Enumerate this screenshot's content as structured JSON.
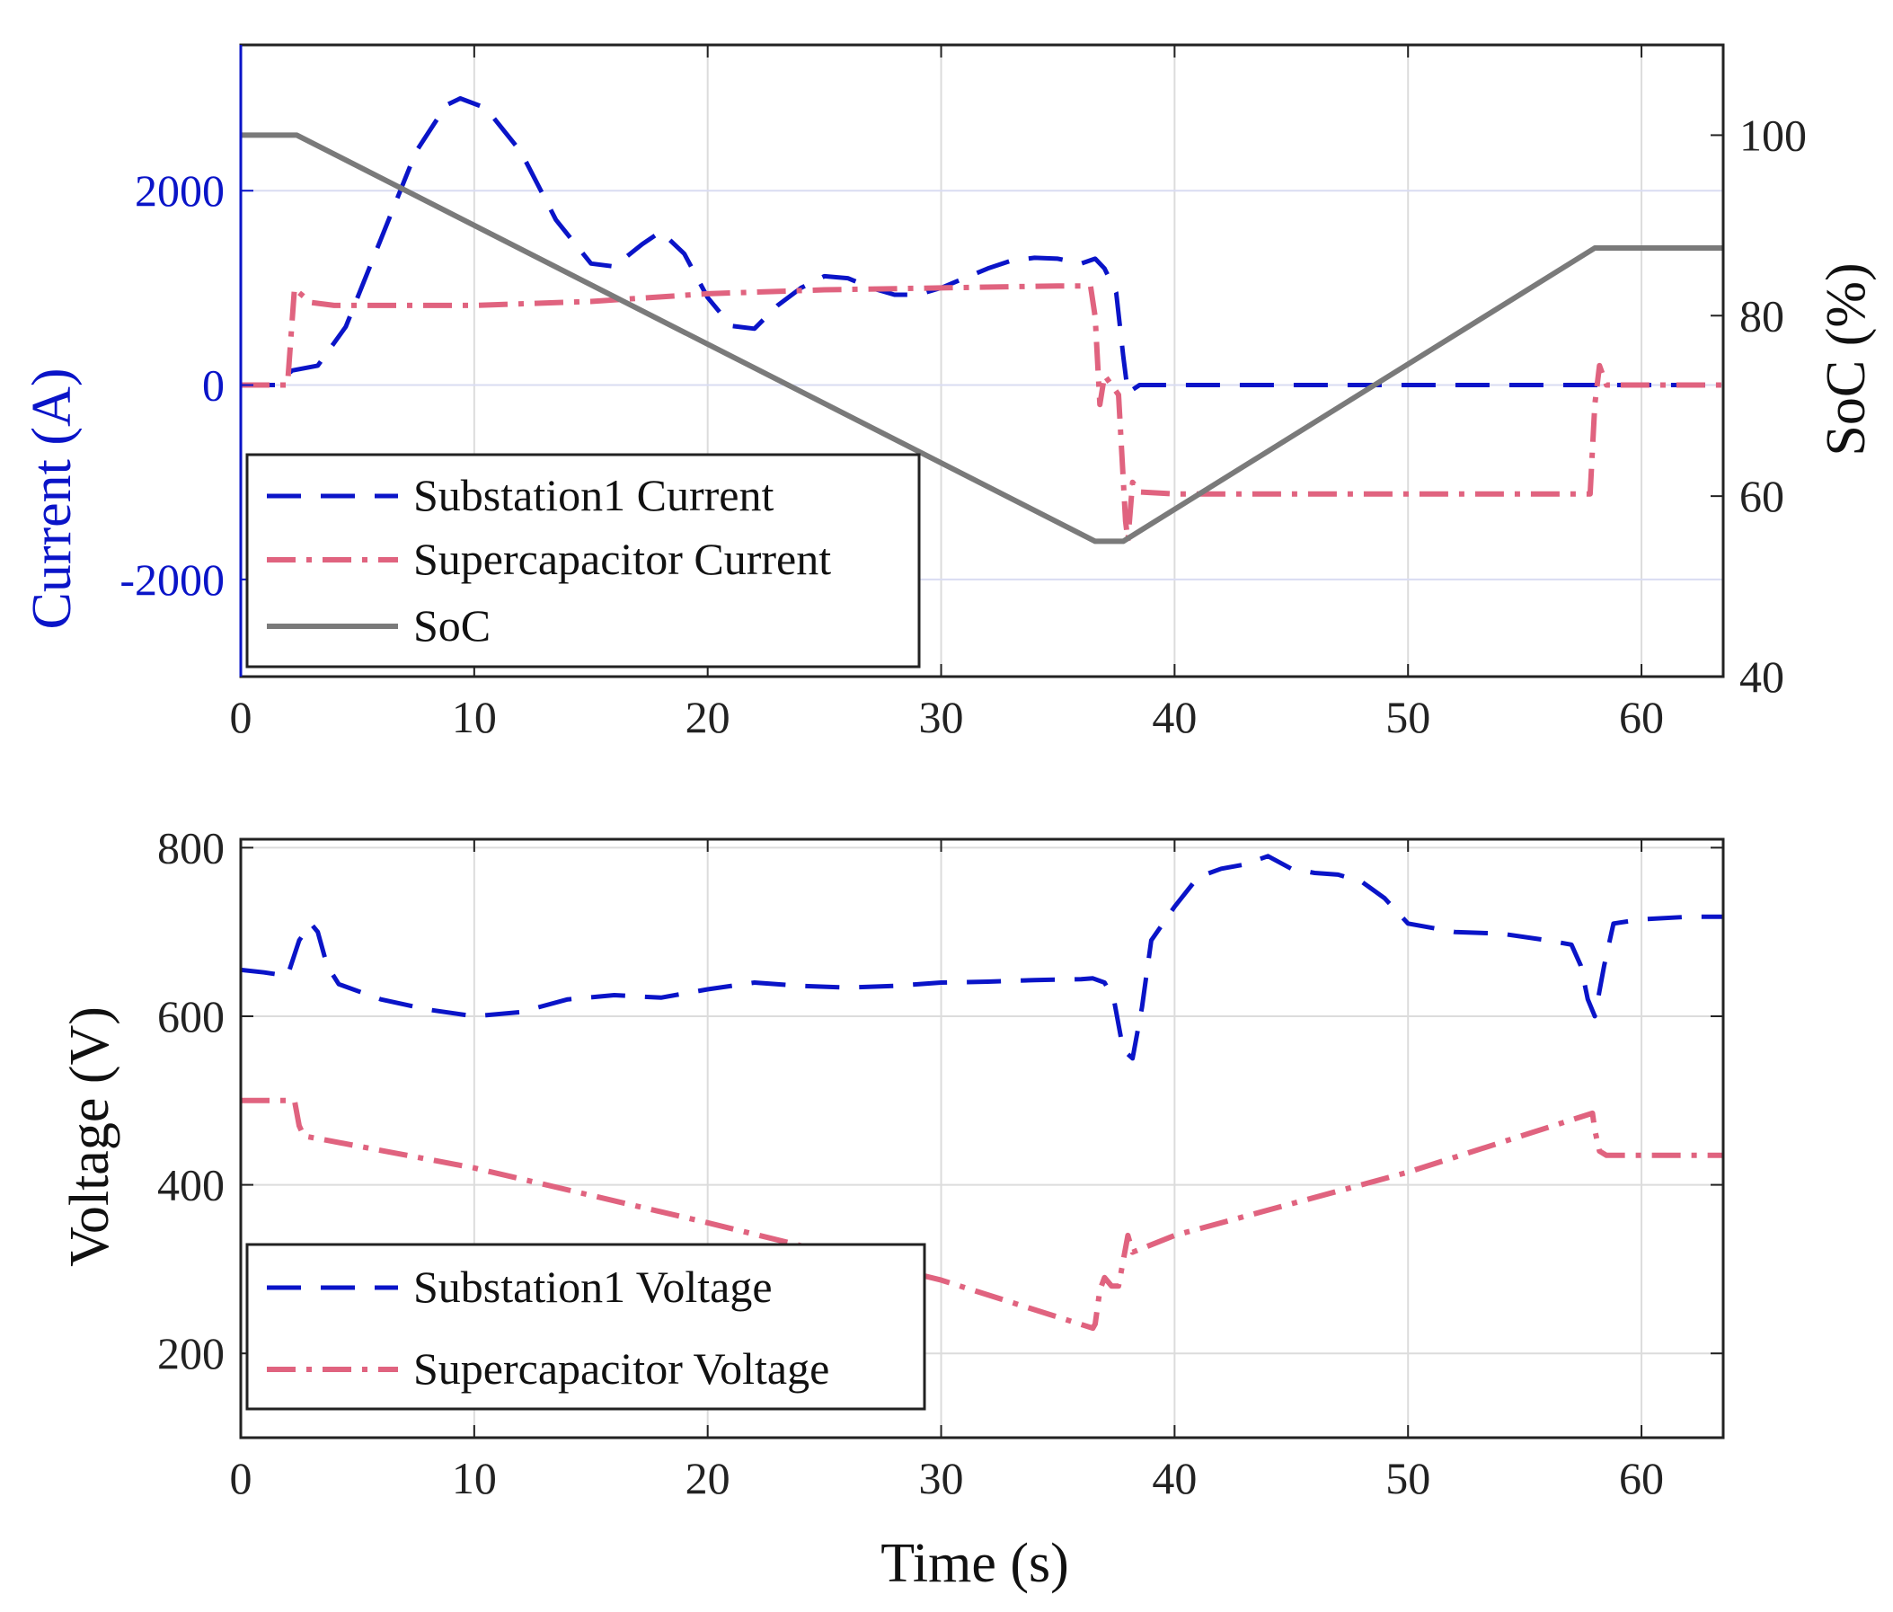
{
  "colors": {
    "substation": "#0a14c8",
    "supercap": "#e0637f",
    "soc": "#7a7a7a",
    "grid": "#dcdcdc",
    "axis": "#222222",
    "left_axis_blue": "#0a14c8"
  },
  "chart_data": [
    {
      "type": "line",
      "xlabel": "",
      "ylabel": "Current (A)",
      "y2label": "SoC (%)",
      "xlim": [
        0,
        63.5
      ],
      "ylim": [
        -3000,
        3500
      ],
      "y2lim": [
        40,
        110
      ],
      "xticks": [
        0,
        10,
        20,
        30,
        40,
        50,
        60
      ],
      "xtick_labels": [
        "0",
        "10",
        "20",
        "30",
        "40",
        "50",
        "60"
      ],
      "yticks": [
        2000,
        0,
        -2000
      ],
      "ytick_labels": [
        "2000",
        "0",
        "-2000"
      ],
      "y2ticks": [
        100,
        80,
        60,
        40
      ],
      "y2tick_labels": [
        "100",
        "80",
        "60",
        "40"
      ],
      "grid": true,
      "legend_position": "bottom-left",
      "series": [
        {
          "name": "Substation1 Current",
          "axis": "left",
          "style": "dashed",
          "x": [
            0,
            1.5,
            2.2,
            3.3,
            4.5,
            6,
            7.5,
            8.8,
            9.4,
            10.5,
            12,
            13.5,
            15,
            16,
            17.2,
            18,
            19,
            20,
            21,
            22,
            23,
            24,
            25,
            26,
            27,
            28,
            29,
            30,
            31,
            32,
            33,
            34,
            35,
            36,
            36.6,
            37,
            37.5,
            37.8,
            38,
            38.5,
            40,
            50,
            63.5
          ],
          "values": [
            0,
            0,
            150,
            200,
            600,
            1500,
            2400,
            2880,
            2950,
            2850,
            2400,
            1700,
            1250,
            1220,
            1450,
            1580,
            1350,
            900,
            610,
            580,
            820,
            1000,
            1120,
            1100,
            1000,
            930,
            930,
            1000,
            1100,
            1200,
            1280,
            1310,
            1300,
            1250,
            1300,
            1200,
            950,
            300,
            -80,
            0,
            0,
            0,
            0
          ]
        },
        {
          "name": "Supercapacitor Current",
          "axis": "left",
          "style": "dashdot",
          "x": [
            0,
            2.0,
            2.3,
            2.5,
            3.0,
            4,
            6,
            10,
            15,
            20,
            25,
            30,
            35,
            36.4,
            36.6,
            36.8,
            37.0,
            37.3,
            37.6,
            37.9,
            38.0,
            38.2,
            38.5,
            40,
            45,
            50,
            55,
            57.8,
            58.0,
            58.2,
            58.5,
            59,
            63.5
          ],
          "values": [
            0,
            0,
            1000,
            950,
            850,
            820,
            820,
            820,
            860,
            940,
            980,
            1000,
            1020,
            1020,
            700,
            -200,
            100,
            0,
            -100,
            -1400,
            -1600,
            -1000,
            -1100,
            -1120,
            -1120,
            -1120,
            -1120,
            -1120,
            -200,
            200,
            0,
            0,
            0
          ]
        },
        {
          "name": "SoC",
          "axis": "right",
          "style": "solid",
          "x": [
            0,
            2.4,
            36.6,
            37.8,
            58,
            63.5
          ],
          "values": [
            100,
            100,
            55,
            55,
            87.5,
            87.5
          ]
        }
      ]
    },
    {
      "type": "line",
      "xlabel": "Time (s)",
      "ylabel": "Voltage (V)",
      "xlim": [
        0,
        63.5
      ],
      "ylim": [
        100,
        810
      ],
      "xticks": [
        0,
        10,
        20,
        30,
        40,
        50,
        60
      ],
      "xtick_labels": [
        "0",
        "10",
        "20",
        "30",
        "40",
        "50",
        "60"
      ],
      "yticks": [
        800,
        600,
        400,
        200
      ],
      "ytick_labels": [
        "800",
        "600",
        "400",
        "200"
      ],
      "grid": true,
      "legend_position": "bottom-left",
      "series": [
        {
          "name": "Substation1 Voltage",
          "axis": "left",
          "style": "dashed",
          "x": [
            0,
            1,
            2,
            2.5,
            3,
            3.3,
            3.7,
            4.2,
            6,
            8,
            10,
            12,
            14,
            16,
            18,
            20,
            22,
            24,
            26,
            28,
            30,
            32,
            34,
            36,
            36.5,
            37,
            37.4,
            37.8,
            38.2,
            38.6,
            39,
            39.5,
            40,
            41,
            42,
            43,
            44,
            45,
            46,
            47,
            48,
            49,
            50,
            52,
            54,
            56,
            57,
            57.4,
            57.7,
            58,
            58.4,
            58.8,
            60,
            62,
            63.5
          ],
          "values": [
            655,
            652,
            648,
            690,
            710,
            700,
            660,
            638,
            620,
            608,
            600,
            605,
            620,
            625,
            622,
            632,
            640,
            636,
            634,
            636,
            640,
            641,
            643,
            644,
            645,
            640,
            620,
            560,
            550,
            610,
            690,
            710,
            730,
            765,
            775,
            780,
            790,
            775,
            770,
            768,
            760,
            740,
            710,
            700,
            698,
            690,
            685,
            660,
            620,
            600,
            660,
            710,
            715,
            718,
            718
          ]
        },
        {
          "name": "Supercapacitor Voltage",
          "axis": "left",
          "style": "dashdot",
          "x": [
            0,
            2.3,
            2.5,
            2.7,
            10,
            20,
            30,
            36.5,
            36.6,
            36.8,
            37.0,
            37.3,
            37.6,
            37.8,
            38.0,
            38.2,
            40,
            50,
            57.9,
            58.0,
            58.2,
            58.5,
            60,
            63.5
          ],
          "values": [
            500,
            500,
            470,
            458,
            420,
            355,
            287,
            230,
            235,
            275,
            290,
            280,
            280,
            310,
            340,
            320,
            340,
            415,
            485,
            465,
            440,
            435,
            435,
            435
          ]
        }
      ]
    }
  ]
}
